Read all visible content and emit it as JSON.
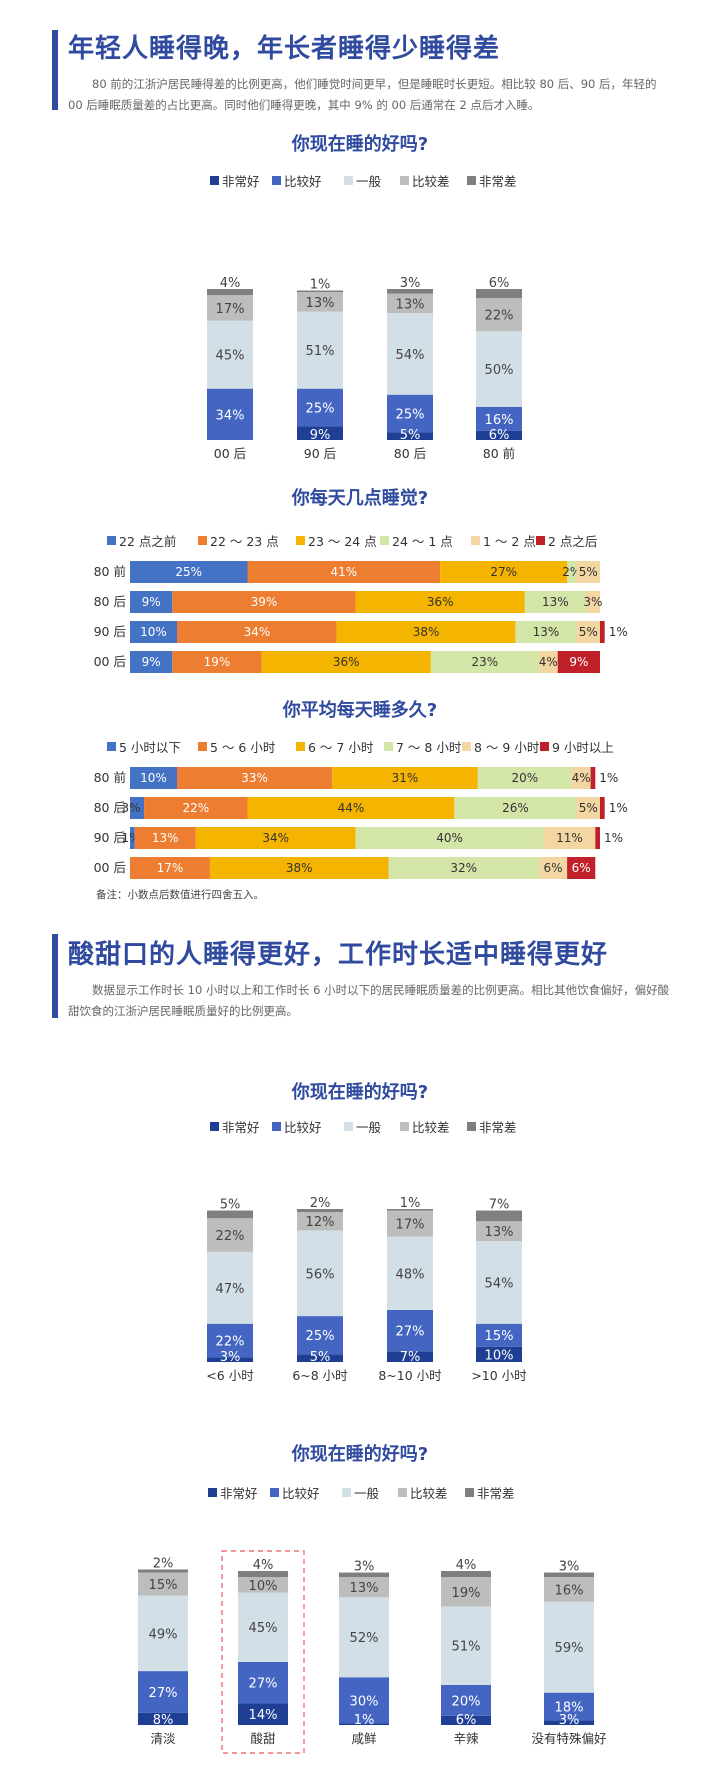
{
  "section1": {
    "title": "年轻人睡得晚，年长者睡得少睡得差",
    "desc": "80 前的江浙沪居民睡得差的比例更高，他们睡觉时间更早，但是睡眠时长更短。相比较 80 后、90 后，年轻的 00 后睡眠质量差的占比更高。同时他们睡得更晚，其中 9% 的 00 后通常在 2 点后才入睡。"
  },
  "section2": {
    "title": "酸甜口的人睡得更好，工作时长适中睡得更好",
    "desc": "数据显示工作时长 10 小时以上和工作时长 6 小时以下的居民睡眠质量差的比例更高。相比其他饮食偏好，偏好酸甜饮食的江浙沪居民睡眠质量好的比例更高。"
  },
  "note": "备注：小数点后数值进行四舍五入。",
  "colors": {
    "quality": [
      "#1f3f95",
      "#4466c2",
      "#d3dfe6",
      "#bdbdbd",
      "#7f7f7f"
    ],
    "six": [
      "#4472c4",
      "#ed7d31",
      "#f4b400",
      "#d4e5a8",
      "#f4d6a3",
      "#c0202a"
    ],
    "title": "#2f4a9e",
    "highlight": "#e85a5a"
  },
  "chart_data": [
    {
      "id": "c1",
      "type": "bar",
      "orientation": "vertical",
      "stacked": true,
      "title": "你现在睡的好吗?",
      "legend": [
        "非常好",
        "比较好",
        "一般",
        "比较差",
        "非常差"
      ],
      "categories": [
        "00 后",
        "90 后",
        "80 后",
        "80 前"
      ],
      "series": [
        {
          "name": "非常好",
          "values": [
            0,
            9,
            5,
            6
          ],
          "labels": [
            "",
            "9%",
            "5%",
            "6%"
          ]
        },
        {
          "name": "比较好",
          "values": [
            34,
            25,
            25,
            16
          ],
          "labels": [
            "34%",
            "25%",
            "25%",
            "16%"
          ]
        },
        {
          "name": "一般",
          "values": [
            45,
            51,
            54,
            50
          ],
          "labels": [
            "45%",
            "51%",
            "54%",
            "50%"
          ]
        },
        {
          "name": "比较差",
          "values": [
            17,
            13,
            13,
            22
          ],
          "labels": [
            "17%",
            "13%",
            "13%",
            "22%"
          ]
        },
        {
          "name": "非常差",
          "values": [
            4,
            1,
            3,
            6
          ],
          "labels": [
            "4%",
            "1%",
            "3%",
            "6%"
          ]
        }
      ]
    },
    {
      "id": "c2",
      "type": "bar",
      "orientation": "horizontal",
      "stacked": true,
      "title": "你每天几点睡觉?",
      "legend": [
        "22 点之前",
        "22 ～ 23 点",
        "23 ～ 24 点",
        "24 ～ 1 点",
        "1 ～ 2 点",
        "2 点之后"
      ],
      "categories": [
        "80 前",
        "80 后",
        "90 后",
        "00 后"
      ],
      "series": [
        {
          "name": "22 点之前",
          "values": [
            25,
            9,
            10,
            9
          ],
          "labels": [
            "25%",
            "9%",
            "10%",
            "9%"
          ]
        },
        {
          "name": "22 ～ 23 点",
          "values": [
            41,
            39,
            34,
            19
          ],
          "labels": [
            "41%",
            "39%",
            "34%",
            "19%"
          ]
        },
        {
          "name": "23 ～ 24 点",
          "values": [
            27,
            36,
            38,
            36
          ],
          "labels": [
            "27%",
            "36%",
            "38%",
            "36%"
          ]
        },
        {
          "name": "24 ～ 1 点",
          "values": [
            2,
            13,
            13,
            23
          ],
          "labels": [
            "2%",
            "13%",
            "13%",
            "23%"
          ]
        },
        {
          "name": "1 ～ 2 点",
          "values": [
            5,
            3,
            5,
            4
          ],
          "labels": [
            "5%",
            "3%",
            "5%",
            "4%"
          ]
        },
        {
          "name": "2 点之后",
          "values": [
            0,
            0,
            1,
            9
          ],
          "labels": [
            "",
            "",
            "1%",
            "9%"
          ]
        }
      ]
    },
    {
      "id": "c3",
      "type": "bar",
      "orientation": "horizontal",
      "stacked": true,
      "title": "你平均每天睡多久?",
      "legend": [
        "5 小时以下",
        "5 ～ 6 小时",
        "6 ～ 7 小时",
        "7 ～ 8 小时",
        "8 ～ 9 小时",
        "9 小时以上"
      ],
      "categories": [
        "80 前",
        "80 后",
        "90 后",
        "00 后"
      ],
      "series": [
        {
          "name": "5 小时以下",
          "values": [
            10,
            3,
            1,
            0
          ],
          "labels": [
            "10%",
            "3%",
            "1%",
            ""
          ]
        },
        {
          "name": "5 ～ 6 小时",
          "values": [
            33,
            22,
            13,
            17
          ],
          "labels": [
            "33%",
            "22%",
            "13%",
            "17%"
          ]
        },
        {
          "name": "6 ～ 7 小时",
          "values": [
            31,
            44,
            34,
            38
          ],
          "labels": [
            "31%",
            "44%",
            "34%",
            "38%"
          ]
        },
        {
          "name": "7 ～ 8 小时",
          "values": [
            20,
            26,
            40,
            32
          ],
          "labels": [
            "20%",
            "26%",
            "40%",
            "32%"
          ]
        },
        {
          "name": "8 ～ 9 小时",
          "values": [
            4,
            5,
            11,
            6
          ],
          "labels": [
            "4%",
            "5%",
            "11%",
            "6%"
          ]
        },
        {
          "name": "9 小时以上",
          "values": [
            1,
            1,
            1,
            6
          ],
          "labels": [
            "1%",
            "1%",
            "1%",
            "6%"
          ]
        }
      ]
    },
    {
      "id": "c4",
      "type": "bar",
      "orientation": "vertical",
      "stacked": true,
      "title": "你现在睡的好吗?",
      "legend": [
        "非常好",
        "比较好",
        "一般",
        "比较差",
        "非常差"
      ],
      "categories": [
        "<6 小时",
        "6~8 小时",
        "8~10 小时",
        ">10 小时"
      ],
      "series": [
        {
          "name": "非常好",
          "values": [
            3,
            5,
            7,
            10
          ],
          "labels": [
            "3%",
            "5%",
            "7%",
            "10%"
          ]
        },
        {
          "name": "比较好",
          "values": [
            22,
            25,
            27,
            15
          ],
          "labels": [
            "22%",
            "25%",
            "27%",
            "15%"
          ]
        },
        {
          "name": "一般",
          "values": [
            47,
            56,
            48,
            54
          ],
          "labels": [
            "47%",
            "56%",
            "48%",
            "54%"
          ]
        },
        {
          "name": "比较差",
          "values": [
            22,
            12,
            17,
            13
          ],
          "labels": [
            "22%",
            "12%",
            "17%",
            "13%"
          ]
        },
        {
          "name": "非常差",
          "values": [
            5,
            2,
            1,
            7
          ],
          "labels": [
            "5%",
            "2%",
            "1%",
            "7%"
          ]
        }
      ]
    },
    {
      "id": "c5",
      "type": "bar",
      "orientation": "vertical",
      "stacked": true,
      "title": "你现在睡的好吗?",
      "legend": [
        "非常好",
        "比较好",
        "一般",
        "比较差",
        "非常差"
      ],
      "categories": [
        "清淡",
        "酸甜",
        "咸鲜",
        "辛辣",
        "没有特殊偏好"
      ],
      "highlight": "酸甜",
      "series": [
        {
          "name": "非常好",
          "values": [
            8,
            14,
            1,
            6,
            3
          ],
          "labels": [
            "8%",
            "14%",
            "1%",
            "6%",
            "3%"
          ]
        },
        {
          "name": "比较好",
          "values": [
            27,
            27,
            30,
            20,
            18
          ],
          "labels": [
            "27%",
            "27%",
            "30%",
            "20%",
            "18%"
          ]
        },
        {
          "name": "一般",
          "values": [
            49,
            45,
            52,
            51,
            59
          ],
          "labels": [
            "49%",
            "45%",
            "52%",
            "51%",
            "59%"
          ]
        },
        {
          "name": "比较差",
          "values": [
            15,
            10,
            13,
            19,
            16
          ],
          "labels": [
            "15%",
            "10%",
            "13%",
            "19%",
            "16%"
          ]
        },
        {
          "name": "非常差",
          "values": [
            2,
            4,
            3,
            4,
            3
          ],
          "labels": [
            "2%",
            "4%",
            "3%",
            "4%",
            "3%"
          ]
        }
      ]
    }
  ]
}
